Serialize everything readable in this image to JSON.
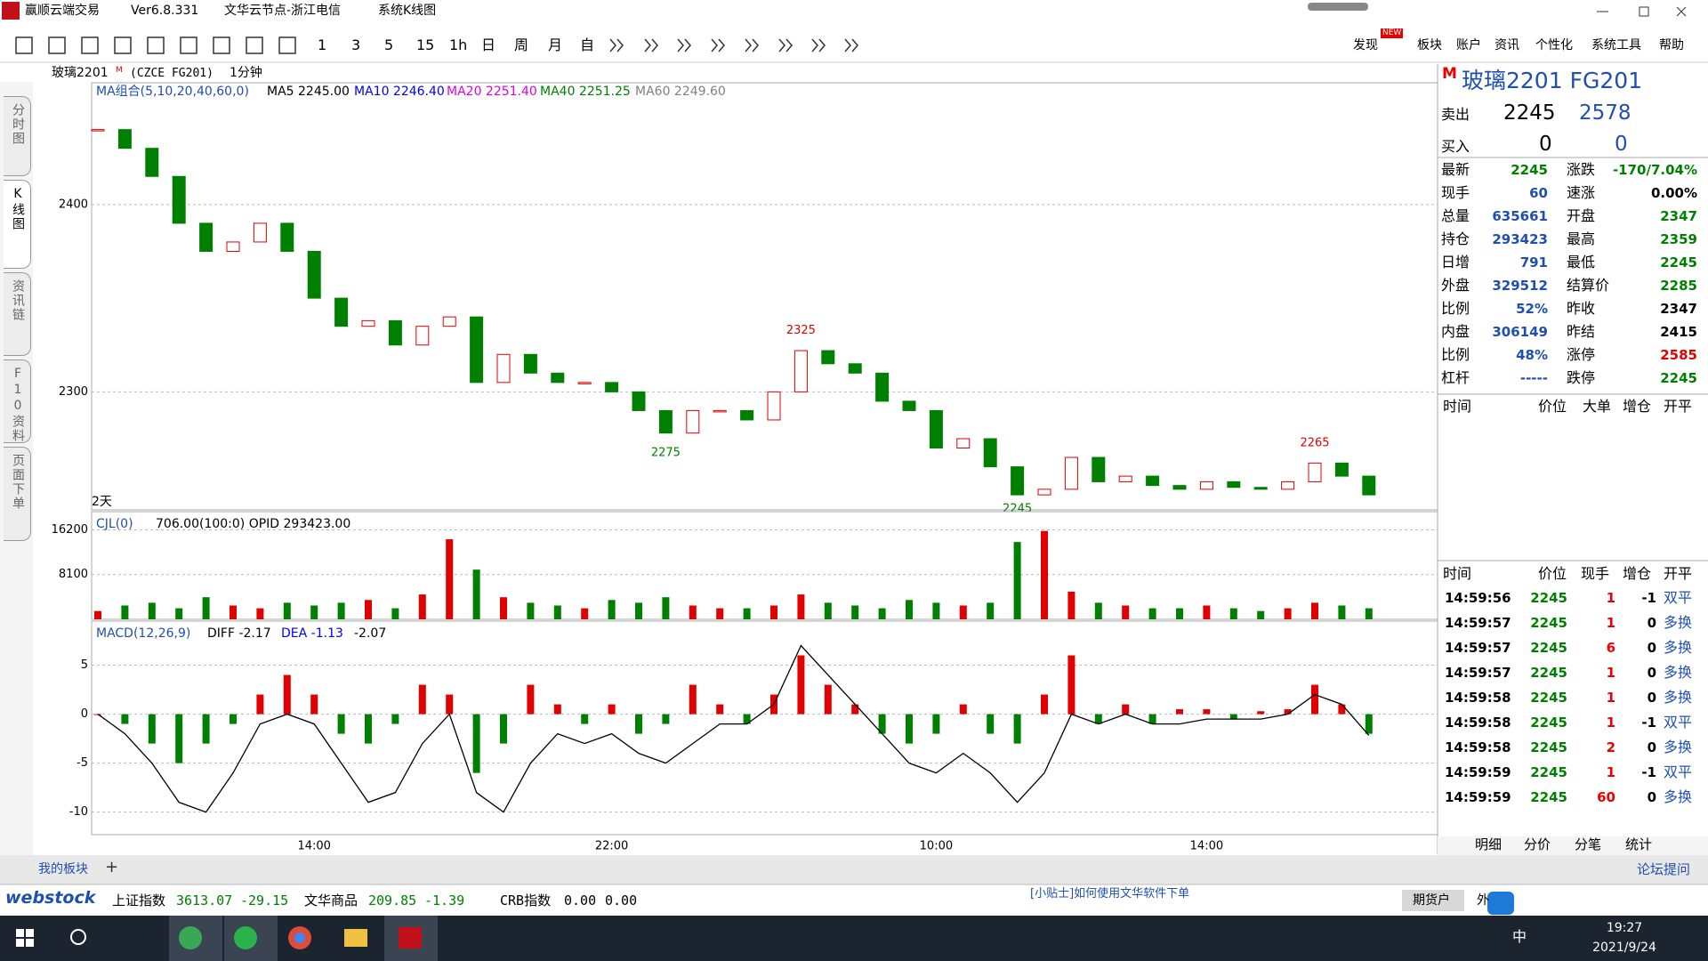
{
  "window": {
    "app": "赢顺云端交易",
    "version": "Ver6.8.331",
    "node": "文华云节点-浙江电信",
    "view": "系统K线图"
  },
  "toolbar": {
    "periods": [
      "1",
      "3",
      "5",
      "15",
      "1h",
      "日",
      "周",
      "月",
      "自"
    ],
    "menu": [
      "发现",
      "板块",
      "账户",
      "资讯",
      "个性化",
      "系统工具",
      "帮助"
    ],
    "badge": "NEW"
  },
  "side_tabs": [
    "分时图",
    "K线图",
    "资讯链",
    "F10资料",
    "页面下单"
  ],
  "symbol_bar": {
    "name": "玻璃2201",
    "flag": "M",
    "code": "(CZCE FG201)",
    "period": "1分钟"
  },
  "chart_data": [
    {
      "type": "candlestick",
      "header": "MA组合(5,10,20,40,60,0)",
      "note": "2天",
      "legend": [
        {
          "name": "MA5 2245.00",
          "color": "#000000"
        },
        {
          "name": "MA10 2246.40",
          "color": "#0000ff"
        },
        {
          "name": "MA20 2251.40",
          "color": "#e000e0"
        },
        {
          "name": "MA40 2251.25",
          "color": "#008000"
        },
        {
          "name": "MA60 2249.60",
          "color": "#808080"
        }
      ],
      "values": [
        2440,
        2430,
        2415,
        2390,
        2375,
        2380,
        2390,
        2375,
        2350,
        2335,
        2338,
        2325,
        2335,
        2340,
        2305,
        2320,
        2310,
        2305,
        2305,
        2300,
        2290,
        2278,
        2290,
        2290,
        2285,
        2300,
        2322,
        2315,
        2310,
        2295,
        2290,
        2270,
        2275,
        2260,
        2245,
        2248,
        2265,
        2252,
        2255,
        2250,
        2248,
        2252,
        2249,
        2248,
        2252,
        2262,
        2255,
        2245
      ],
      "up_color": "#e00000",
      "down_color": "#008000",
      "ylim": [
        2237,
        2465
      ],
      "yticks": [
        2300,
        2400
      ],
      "grid": true,
      "annotations": [
        {
          "x": 26,
          "value": 2325,
          "color": "#e00000"
        },
        {
          "x": 21,
          "value": 2275,
          "color": "#008000"
        },
        {
          "x": 34,
          "value": 2245,
          "color": "#008000"
        },
        {
          "x": 45,
          "value": 2265,
          "color": "#e00000"
        }
      ]
    },
    {
      "type": "bar",
      "header": "CJL(0)",
      "readout": "706.00(100:0)  OPID 293423.00",
      "values": [
        1500,
        2500,
        3000,
        2000,
        4000,
        2500,
        2000,
        3000,
        2500,
        3000,
        3500,
        2000,
        4500,
        14500,
        9000,
        4000,
        3000,
        2500,
        2000,
        3500,
        3000,
        4000,
        2500,
        2000,
        2000,
        2500,
        4500,
        3000,
        2500,
        2000,
        3500,
        3000,
        2500,
        3000,
        14000,
        16000,
        5000,
        3000,
        2500,
        2000,
        2000,
        2500,
        2000,
        1500,
        2000,
        3000,
        2500,
        2000
      ],
      "ylim": [
        0,
        19500
      ],
      "yticks": [
        8100,
        16200
      ],
      "grid": true
    },
    {
      "type": "bar",
      "header": "MACD(12,26,9)",
      "readouts": [
        {
          "text": "DIFF -2.17",
          "color": "#000000"
        },
        {
          "text": "DEA -1.13",
          "color": "#0000ff"
        },
        {
          "text": "-2.07",
          "color": "#000000"
        }
      ],
      "categories": [
        null,
        null,
        null,
        null,
        null,
        null,
        null,
        null,
        "14:00",
        null,
        null,
        null,
        null,
        null,
        null,
        null,
        null,
        null,
        null,
        "22:00",
        null,
        null,
        null,
        null,
        null,
        null,
        null,
        null,
        null,
        null,
        null,
        "10:00",
        null,
        null,
        null,
        null,
        null,
        null,
        null,
        null,
        null,
        "14:00",
        null,
        null,
        null,
        null,
        null,
        null
      ],
      "values": [
        0,
        -1,
        -3,
        -5,
        -3,
        -1,
        2,
        4,
        2,
        -2,
        -3,
        -1,
        3,
        2,
        -6,
        -3,
        3,
        1,
        -1,
        1,
        -2,
        -1,
        3,
        1,
        -1,
        2,
        6,
        3,
        1,
        -2,
        -3,
        -2,
        1,
        -2,
        -3,
        2,
        6,
        -1,
        1,
        -1,
        0.5,
        0.5,
        -0.5,
        0.3,
        0.5,
        3,
        1,
        -2
      ],
      "line": {
        "color": "#000000",
        "values": [
          0,
          -2,
          -5,
          -9,
          -10,
          -6,
          -1,
          0,
          -1,
          -5,
          -9,
          -8,
          -3,
          0,
          -8,
          -10,
          -5,
          -2,
          -3,
          -2,
          -4,
          -5,
          -3,
          -1,
          -1,
          1,
          7,
          4,
          1,
          -2,
          -5,
          -6,
          -4,
          -6,
          -9,
          -6,
          0,
          -1,
          0,
          -1,
          -1,
          -0.5,
          -0.5,
          -0.5,
          0,
          2,
          1,
          -2.17
        ]
      },
      "up_color": "#e00000",
      "down_color": "#008000",
      "ylim": [
        -12.3,
        9.5
      ],
      "yticks": [
        -10,
        -5,
        0,
        5
      ],
      "grid": true
    }
  ],
  "quote": {
    "flag": "M",
    "title": "玻璃2201  FG201",
    "ask_label": "卖出",
    "ask_price": "2245",
    "ask_vol": "2578",
    "bid_label": "买入",
    "bid_price": "0",
    "bid_vol": "0",
    "left": [
      {
        "label": "最新",
        "value": "2245",
        "color": "#008000"
      },
      {
        "label": "现手",
        "value": "60",
        "color": "#1f4fb0"
      },
      {
        "label": "总量",
        "value": "635661",
        "color": "#1f4fb0"
      },
      {
        "label": "持仓",
        "value": "293423",
        "color": "#1f4fb0"
      },
      {
        "label": "日增",
        "value": "791",
        "color": "#1f4fb0"
      },
      {
        "label": "外盘",
        "value": "329512",
        "color": "#1f4fb0"
      },
      {
        "label": "比例",
        "value": "52%",
        "color": "#1f4fb0"
      },
      {
        "label": "内盘",
        "value": "306149",
        "color": "#1f4fb0"
      },
      {
        "label": "比例",
        "value": "48%",
        "color": "#1f4fb0"
      },
      {
        "label": "杠杆",
        "value": "-----",
        "color": "#1f4fb0"
      }
    ],
    "right": [
      {
        "label": "涨跌",
        "value": "-170/7.04%",
        "color": "#008000"
      },
      {
        "label": "速涨",
        "value": "0.00%",
        "color": "#000000"
      },
      {
        "label": "开盘",
        "value": "2347",
        "color": "#008000"
      },
      {
        "label": "最高",
        "value": "2359",
        "color": "#008000"
      },
      {
        "label": "最低",
        "value": "2245",
        "color": "#008000"
      },
      {
        "label": "结算价",
        "value": "2285",
        "color": "#008000"
      },
      {
        "label": "昨收",
        "value": "2347",
        "color": "#000000"
      },
      {
        "label": "昨结",
        "value": "2415",
        "color": "#000000"
      },
      {
        "label": "涨停",
        "value": "2585",
        "color": "#e00000"
      },
      {
        "label": "跌停",
        "value": "2245",
        "color": "#008000"
      }
    ]
  },
  "tick_header": [
    "时间",
    "价位",
    "大单",
    "增仓",
    "开平"
  ],
  "trades": {
    "header": [
      "时间",
      "价位",
      "现手",
      "增仓",
      "开平"
    ],
    "rows": [
      [
        "14:59:56",
        "2245",
        "1",
        "-1",
        "双平"
      ],
      [
        "14:59:57",
        "2245",
        "1",
        "0",
        "多换"
      ],
      [
        "14:59:57",
        "2245",
        "6",
        "0",
        "多换"
      ],
      [
        "14:59:57",
        "2245",
        "1",
        "0",
        "多换"
      ],
      [
        "14:59:58",
        "2245",
        "1",
        "0",
        "多换"
      ],
      [
        "14:59:58",
        "2245",
        "1",
        "-1",
        "双平"
      ],
      [
        "14:59:58",
        "2245",
        "2",
        "0",
        "多换"
      ],
      [
        "14:59:59",
        "2245",
        "1",
        "-1",
        "双平"
      ],
      [
        "14:59:59",
        "2245",
        "60",
        "0",
        "多换"
      ]
    ]
  },
  "panel_tabs": [
    "明细",
    "分价",
    "分笔",
    "统计"
  ],
  "bottom": {
    "tab": "我的板块",
    "add": "+",
    "forum": "论坛提问"
  },
  "status": {
    "logo": "webstock",
    "items": [
      "上证指数",
      "3613.07",
      "-29.15",
      "文华商品",
      "209.85",
      "-1.39",
      "CRB指数",
      "0.00",
      "0.00"
    ],
    "news": "[小贴士]如何使用文华软件下单",
    "account": "期货户",
    "other": "外"
  },
  "taskbar": {
    "ime": "中",
    "time": "19:27",
    "date": "2021/9/24"
  }
}
